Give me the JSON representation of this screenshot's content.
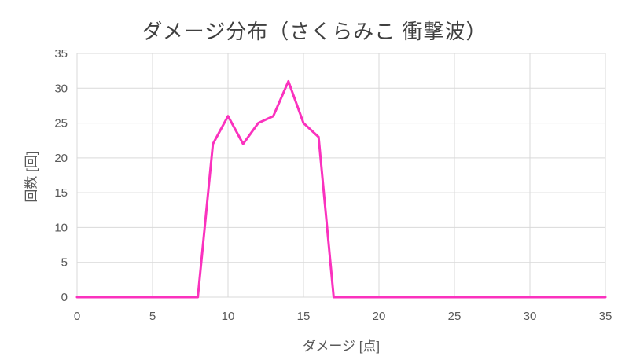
{
  "chart_data": {
    "type": "line",
    "title": "ダメージ分布（さくらみこ 衝撃波）",
    "xlabel": "ダメージ [点]",
    "ylabel": "回数 [回]",
    "x": [
      0,
      1,
      2,
      3,
      4,
      5,
      6,
      7,
      8,
      9,
      10,
      11,
      12,
      13,
      14,
      15,
      16,
      17,
      18,
      19,
      20,
      21,
      22,
      23,
      24,
      25,
      26,
      27,
      28,
      29,
      30,
      31,
      32,
      33,
      34,
      35
    ],
    "values": [
      0,
      0,
      0,
      0,
      0,
      0,
      0,
      0,
      0,
      22,
      26,
      22,
      25,
      26,
      31,
      25,
      23,
      0,
      0,
      0,
      0,
      0,
      0,
      0,
      0,
      0,
      0,
      0,
      0,
      0,
      0,
      0,
      0,
      0,
      0,
      0
    ],
    "xlim": [
      0,
      35
    ],
    "ylim": [
      0,
      35
    ],
    "x_ticks": [
      0,
      5,
      10,
      15,
      20,
      25,
      30,
      35
    ],
    "y_ticks": [
      0,
      5,
      10,
      15,
      20,
      25,
      30,
      35
    ],
    "grid": true,
    "legend": false,
    "series_name": "回数",
    "line_color": "#FA32BE",
    "grid_color": "#D9D9D9",
    "tick_label_color": "#595959",
    "axis_title_color": "#595959",
    "title_color": "#404040",
    "background_color": "#FFFFFF"
  }
}
